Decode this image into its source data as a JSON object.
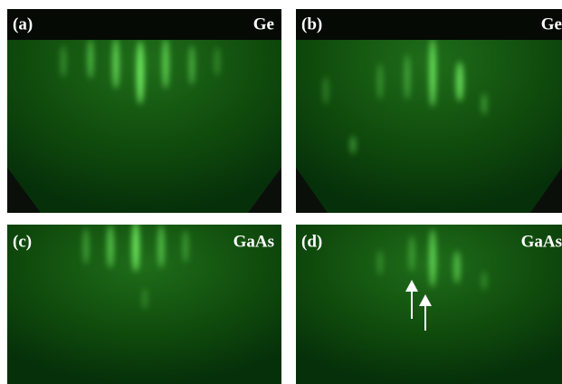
{
  "panels": [
    {
      "label": "(a)",
      "material": "Ge"
    },
    {
      "label": "(b)",
      "material": "Ge"
    },
    {
      "label": "(c)",
      "material": "GaAs"
    },
    {
      "label": "(d)",
      "material": "GaAs"
    }
  ]
}
